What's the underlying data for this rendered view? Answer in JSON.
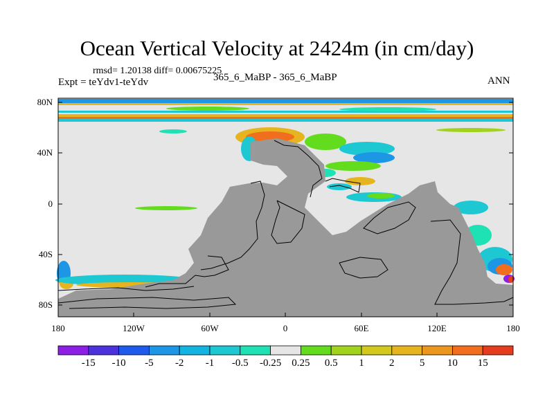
{
  "plot": {
    "title": "Ocean Vertical Velocity at 2424m (in cm/day)",
    "stats": "rmsd= 1.20138 diff= 0.00675225",
    "experiment": "Expt = teYdv1-teYdv",
    "cases": "365_6_MaBP - 365_6_MaBP",
    "season": "ANN"
  },
  "axes": {
    "lat_labels": [
      "80N",
      "40N",
      "0",
      "40S",
      "80S"
    ],
    "lon_labels": [
      "180",
      "120W",
      "60W",
      "0",
      "60E",
      "120E",
      "180"
    ]
  },
  "colorbar": {
    "labels": [
      "-15",
      "-10",
      "-5",
      "-2",
      "-1",
      "-0.5",
      "-0.25",
      "0.25",
      "0.5",
      "1",
      "2",
      "5",
      "10",
      "15"
    ],
    "colors": [
      "#8c1ee6",
      "#4b32dc",
      "#1e5aeb",
      "#1e96e6",
      "#14b4e1",
      "#1ec8d2",
      "#1ee1b4",
      "#e6e6e6",
      "#64dc1e",
      "#a0d21e",
      "#d2c81e",
      "#e6b41e",
      "#eb961e",
      "#f06e1e",
      "#e63c1e"
    ]
  },
  "map": {
    "land_color": "#999999",
    "ocean_color": "#e6e6e6",
    "lon_range": [
      -180,
      180
    ],
    "lat_range": [
      -90,
      90
    ]
  }
}
